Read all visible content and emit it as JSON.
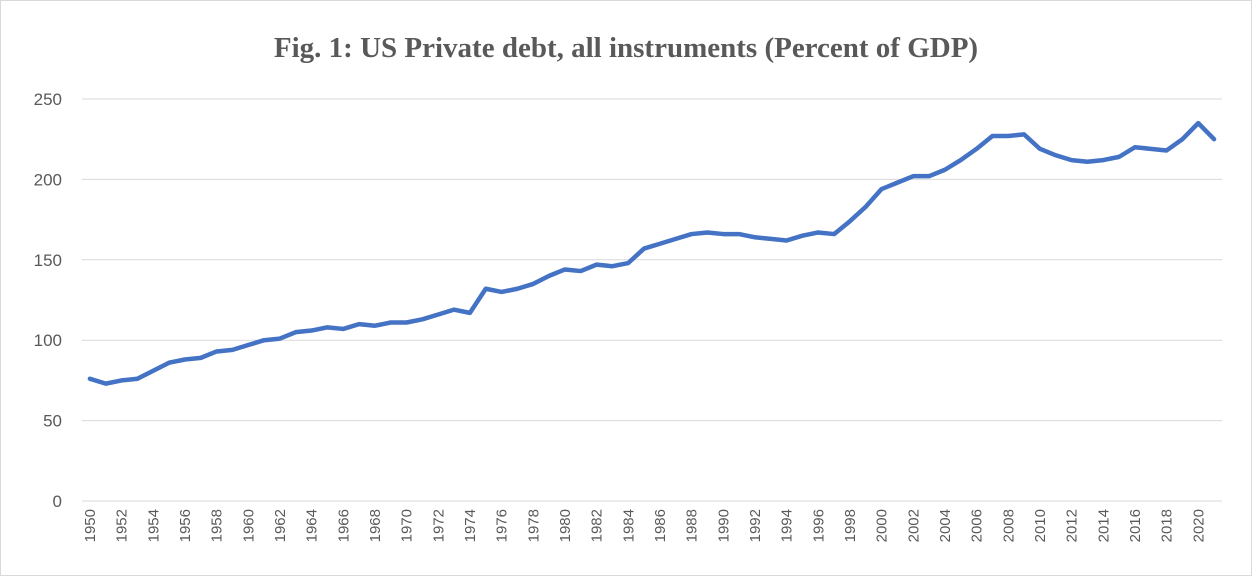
{
  "chart_data": {
    "type": "line",
    "title": "Fig. 1: US Private debt, all instruments (Percent of GDP)",
    "xlabel": "",
    "ylabel": "",
    "ylim": [
      0,
      250
    ],
    "yticks": [
      0,
      50,
      100,
      150,
      200,
      250
    ],
    "grid": true,
    "legend": "none",
    "series_color": "#4472c4",
    "x": [
      1950,
      1951,
      1952,
      1953,
      1954,
      1955,
      1956,
      1957,
      1958,
      1959,
      1960,
      1961,
      1962,
      1963,
      1964,
      1965,
      1966,
      1967,
      1968,
      1969,
      1970,
      1971,
      1972,
      1973,
      1974,
      1975,
      1976,
      1977,
      1978,
      1979,
      1980,
      1981,
      1982,
      1983,
      1984,
      1985,
      1986,
      1987,
      1988,
      1989,
      1990,
      1991,
      1992,
      1993,
      1994,
      1995,
      1996,
      1997,
      1998,
      1999,
      2000,
      2001,
      2002,
      2003,
      2004,
      2005,
      2006,
      2007,
      2008,
      2009,
      2010,
      2011,
      2012,
      2013,
      2014,
      2015,
      2016,
      2017,
      2018,
      2019,
      2020,
      2021
    ],
    "xtick_labels": [
      "1950",
      "1952",
      "1954",
      "1956",
      "1958",
      "1960",
      "1962",
      "1964",
      "1966",
      "1968",
      "1970",
      "1972",
      "1974",
      "1976",
      "1978",
      "1980",
      "1982",
      "1984",
      "1986",
      "1988",
      "1990",
      "1992",
      "1994",
      "1996",
      "1998",
      "2000",
      "2002",
      "2004",
      "2006",
      "2008",
      "2010",
      "2012",
      "2014",
      "2016",
      "2018",
      "2020"
    ],
    "series": [
      {
        "values": [
          76,
          73,
          75,
          76,
          81,
          86,
          88,
          89,
          93,
          94,
          97,
          100,
          101,
          105,
          106,
          108,
          107,
          110,
          109,
          111,
          111,
          113,
          116,
          119,
          117,
          132,
          130,
          132,
          135,
          140,
          144,
          143,
          147,
          146,
          148,
          157,
          160,
          163,
          166,
          167,
          166,
          166,
          164,
          163,
          162,
          165,
          167,
          166,
          174,
          183,
          194,
          198,
          202,
          202,
          206,
          212,
          219,
          227,
          227,
          228,
          219,
          215,
          212,
          211,
          212,
          214,
          220,
          219,
          218,
          225,
          235,
          225
        ]
      }
    ]
  }
}
